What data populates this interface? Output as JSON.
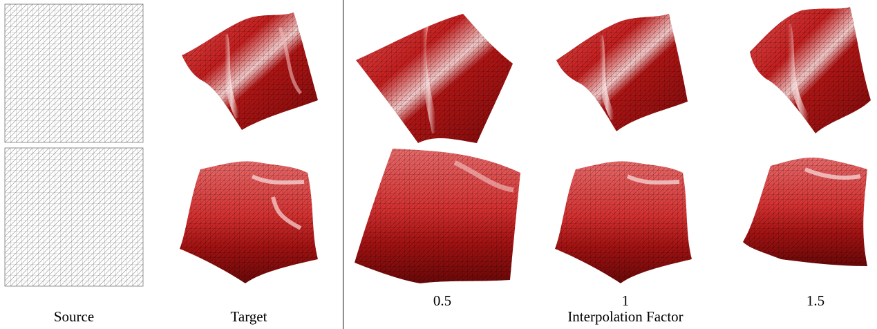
{
  "labels": {
    "source": "Source",
    "target": "Target",
    "interpolation_factor": "Interpolation Factor"
  },
  "factors": [
    "0.5",
    "1",
    "1.5"
  ],
  "colors": {
    "mesh_dark": "#7a0a0a",
    "mesh_mid": "#c41e1e",
    "mesh_light": "#f0a0a0",
    "highlight": "#f4d8d8",
    "grid_line": "#999999",
    "divider": "#111111"
  }
}
